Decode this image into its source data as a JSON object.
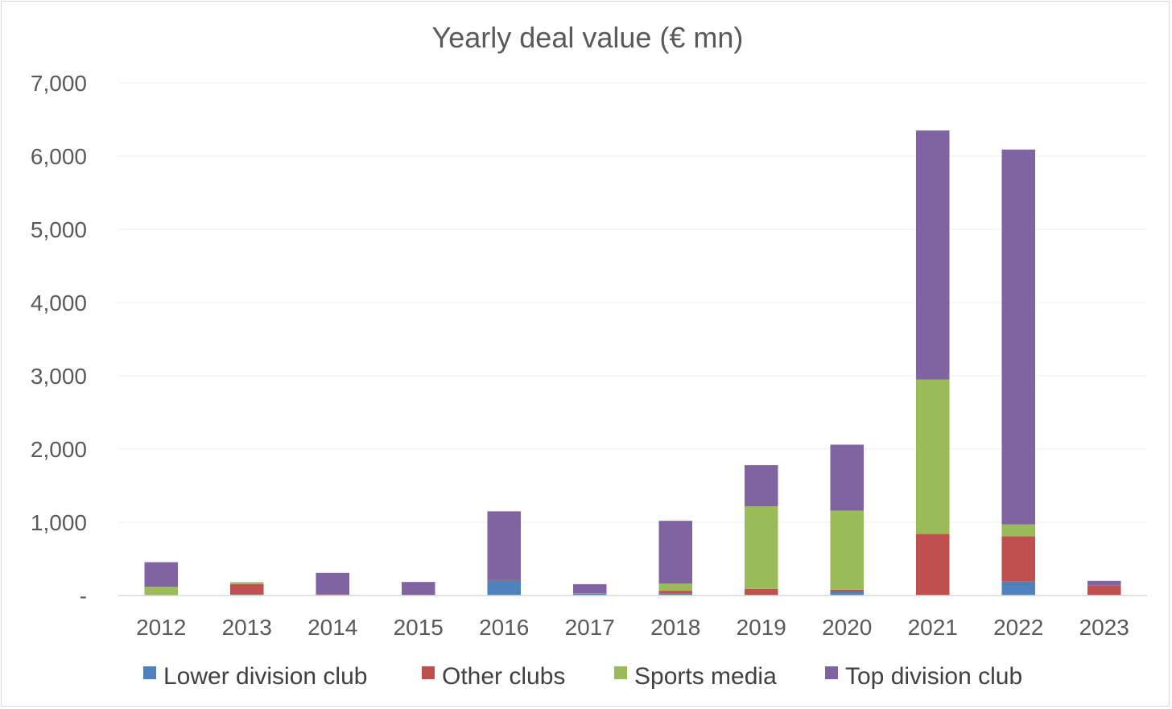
{
  "chart_data": {
    "type": "bar",
    "stacked": true,
    "title": "Yearly deal value (€ mn)",
    "xlabel": "",
    "ylabel": "",
    "categories": [
      "2012",
      "2013",
      "2014",
      "2015",
      "2016",
      "2017",
      "2018",
      "2019",
      "2020",
      "2021",
      "2022",
      "2023"
    ],
    "ylim": [
      0,
      7000
    ],
    "yticks": [
      0,
      1000,
      2000,
      3000,
      4000,
      5000,
      6000,
      7000
    ],
    "ytick_labels": [
      "-",
      "1,000",
      "2,000",
      "3,000",
      "4,000",
      "5,000",
      "6,000",
      "7,000"
    ],
    "grid": true,
    "legend_position": "bottom",
    "series": [
      {
        "name": "Lower division club",
        "color": "#4f81bd",
        "values": [
          5,
          15,
          5,
          5,
          210,
          25,
          25,
          0,
          55,
          0,
          190,
          0
        ]
      },
      {
        "name": "Other clubs",
        "color": "#c0504d",
        "values": [
          5,
          140,
          10,
          5,
          10,
          5,
          40,
          90,
          25,
          840,
          620,
          135
        ]
      },
      {
        "name": "Sports media",
        "color": "#9bbb59",
        "values": [
          110,
          20,
          0,
          0,
          0,
          0,
          100,
          1130,
          1080,
          2110,
          160,
          0
        ]
      },
      {
        "name": "Top division club",
        "color": "#8064a2",
        "values": [
          335,
          5,
          295,
          175,
          930,
          125,
          855,
          560,
          900,
          3400,
          5120,
          65
        ]
      }
    ]
  }
}
